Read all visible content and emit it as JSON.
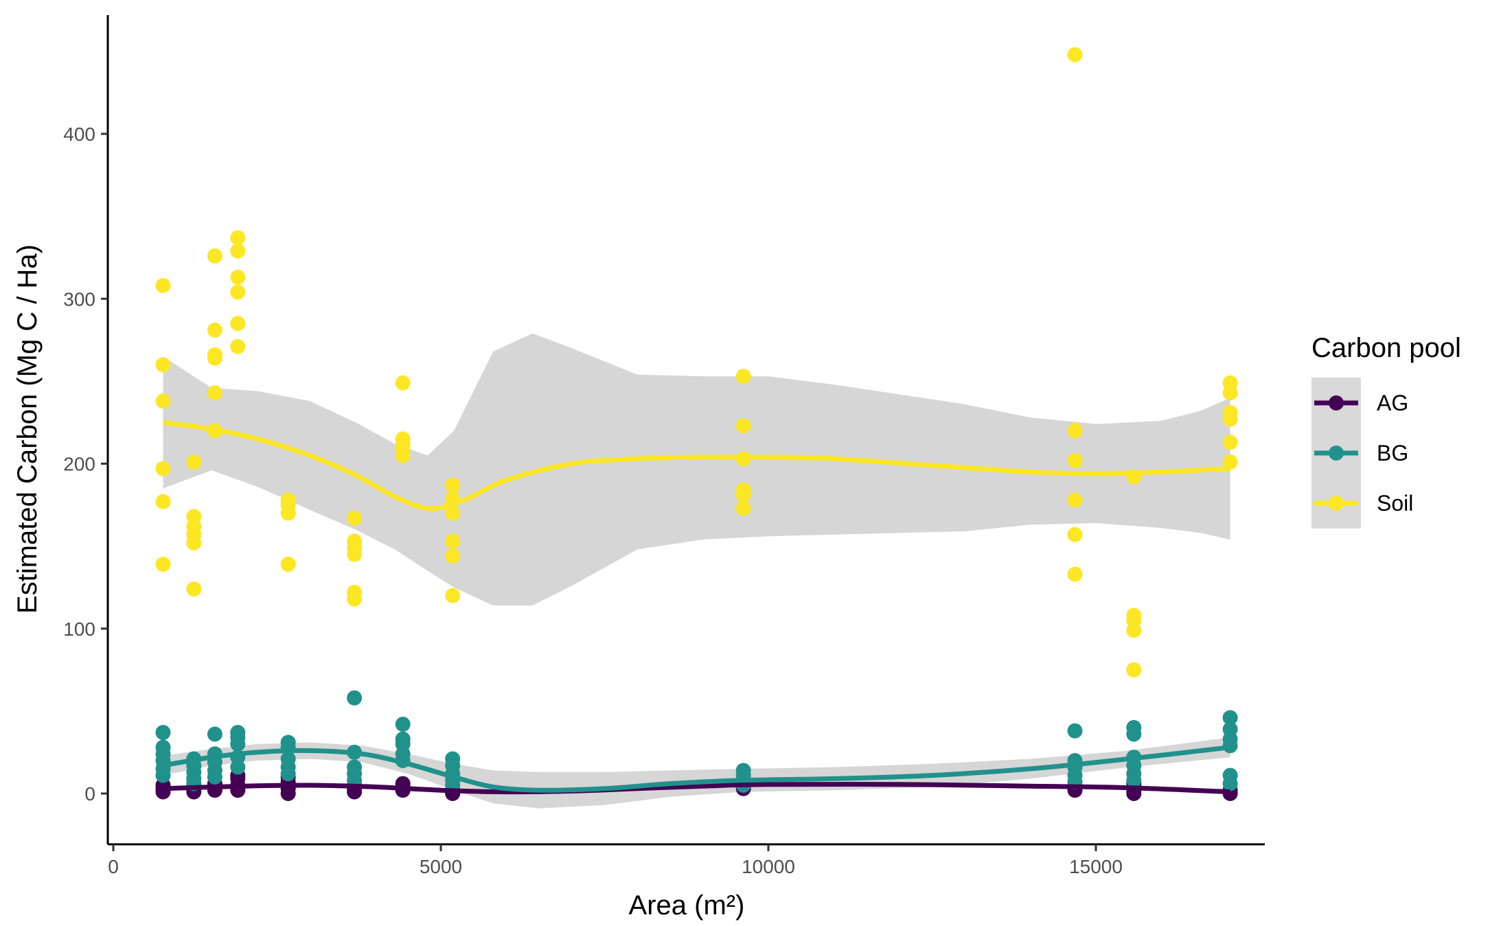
{
  "chart_data": {
    "type": "scatter",
    "xlabel": "Area (m²)",
    "ylabel": "Estimated Carbon (Mg C / Ha)",
    "xlim": [
      -200,
      17900
    ],
    "ylim": [
      -32,
      472
    ],
    "x_ticks": [
      0,
      5000,
      10000,
      15000
    ],
    "x_tick_labels": [
      "0",
      "5000",
      "10000",
      "15000"
    ],
    "y_ticks": [
      0,
      100,
      200,
      300,
      400
    ],
    "y_tick_labels": [
      "0",
      "100",
      "200",
      "300",
      "400"
    ],
    "grid": false,
    "legend": {
      "title": "Carbon pool",
      "placement": "right",
      "entries": [
        "AG",
        "BG",
        "Soil"
      ]
    },
    "series": [
      {
        "name": "AG",
        "color": "#440154",
        "points": [
          [
            760,
            1
          ],
          [
            760,
            3
          ],
          [
            760,
            5
          ],
          [
            1230,
            1
          ],
          [
            1230,
            3
          ],
          [
            1230,
            5
          ],
          [
            1550,
            2
          ],
          [
            1550,
            4
          ],
          [
            1550,
            6
          ],
          [
            1900,
            2
          ],
          [
            1900,
            5
          ],
          [
            1900,
            9
          ],
          [
            1900,
            11
          ],
          [
            2670,
            0
          ],
          [
            2670,
            3
          ],
          [
            2670,
            7
          ],
          [
            2670,
            10
          ],
          [
            3680,
            1
          ],
          [
            3680,
            3
          ],
          [
            3680,
            5
          ],
          [
            4420,
            2
          ],
          [
            4420,
            4
          ],
          [
            4420,
            6
          ],
          [
            5180,
            0
          ],
          [
            5180,
            2
          ],
          [
            9620,
            3
          ],
          [
            9620,
            5
          ],
          [
            14680,
            2
          ],
          [
            14680,
            4
          ],
          [
            15580,
            0
          ],
          [
            15580,
            2
          ],
          [
            15580,
            4
          ],
          [
            15580,
            6
          ],
          [
            17050,
            0
          ],
          [
            17050,
            2
          ]
        ],
        "smooth": [
          [
            760,
            3
          ],
          [
            2000,
            4.5
          ],
          [
            3000,
            5
          ],
          [
            4000,
            4
          ],
          [
            5000,
            2
          ],
          [
            6000,
            1
          ],
          [
            7000,
            1.5
          ],
          [
            8000,
            3
          ],
          [
            9000,
            4.5
          ],
          [
            10000,
            5.5
          ],
          [
            12000,
            5.5
          ],
          [
            14000,
            4.5
          ],
          [
            15500,
            3.5
          ],
          [
            17050,
            1
          ]
        ],
        "band": []
      },
      {
        "name": "BG",
        "color": "#21918c",
        "points": [
          [
            760,
            37
          ],
          [
            760,
            28
          ],
          [
            760,
            24
          ],
          [
            760,
            20
          ],
          [
            760,
            15
          ],
          [
            760,
            11
          ],
          [
            1230,
            21
          ],
          [
            1230,
            17
          ],
          [
            1230,
            13
          ],
          [
            1230,
            9
          ],
          [
            1230,
            6
          ],
          [
            1550,
            36
          ],
          [
            1550,
            24
          ],
          [
            1550,
            19
          ],
          [
            1550,
            14
          ],
          [
            1550,
            10
          ],
          [
            1900,
            37
          ],
          [
            1900,
            34
          ],
          [
            1900,
            30
          ],
          [
            1900,
            22
          ],
          [
            1900,
            16
          ],
          [
            2670,
            31
          ],
          [
            2670,
            28
          ],
          [
            2670,
            21
          ],
          [
            2670,
            16
          ],
          [
            2670,
            12
          ],
          [
            3680,
            58
          ],
          [
            3680,
            25
          ],
          [
            3680,
            16
          ],
          [
            3680,
            12
          ],
          [
            3680,
            8
          ],
          [
            4420,
            42
          ],
          [
            4420,
            33
          ],
          [
            4420,
            30
          ],
          [
            4420,
            24
          ],
          [
            4420,
            20
          ],
          [
            5180,
            21
          ],
          [
            5180,
            17
          ],
          [
            5180,
            12
          ],
          [
            5180,
            8
          ],
          [
            5180,
            5
          ],
          [
            9620,
            14
          ],
          [
            9620,
            11
          ],
          [
            9620,
            8
          ],
          [
            9620,
            5
          ],
          [
            14680,
            38
          ],
          [
            14680,
            20
          ],
          [
            14680,
            16
          ],
          [
            14680,
            11
          ],
          [
            14680,
            7
          ],
          [
            15580,
            40
          ],
          [
            15580,
            36
          ],
          [
            15580,
            22
          ],
          [
            15580,
            17
          ],
          [
            15580,
            12
          ],
          [
            15580,
            8
          ],
          [
            17050,
            46
          ],
          [
            17050,
            39
          ],
          [
            17050,
            33
          ],
          [
            17050,
            29
          ],
          [
            17050,
            11
          ],
          [
            17050,
            6
          ]
        ],
        "smooth": [
          [
            760,
            17
          ],
          [
            1500,
            22
          ],
          [
            2200,
            25
          ],
          [
            3000,
            26
          ],
          [
            3800,
            24
          ],
          [
            4500,
            18
          ],
          [
            5200,
            10
          ],
          [
            5800,
            4
          ],
          [
            6500,
            2
          ],
          [
            7500,
            3
          ],
          [
            8500,
            6
          ],
          [
            9600,
            8
          ],
          [
            11000,
            9
          ],
          [
            12500,
            11
          ],
          [
            14000,
            15
          ],
          [
            15500,
            21
          ],
          [
            17050,
            28
          ]
        ],
        "band": [
          [
            760,
            23,
            11
          ],
          [
            1500,
            27,
            17
          ],
          [
            2200,
            30,
            20
          ],
          [
            3000,
            31,
            21
          ],
          [
            3800,
            29,
            19
          ],
          [
            4500,
            24,
            12
          ],
          [
            5200,
            18,
            2
          ],
          [
            5800,
            14,
            -6
          ],
          [
            6500,
            13,
            -9
          ],
          [
            7500,
            13,
            -7
          ],
          [
            8500,
            14,
            -2
          ],
          [
            9600,
            15,
            1
          ],
          [
            11000,
            16,
            2
          ],
          [
            12500,
            18,
            4
          ],
          [
            14000,
            21,
            9
          ],
          [
            15500,
            26,
            16
          ],
          [
            17050,
            34,
            22
          ]
        ]
      },
      {
        "name": "Soil",
        "color": "#fde725",
        "points": [
          [
            760,
            308
          ],
          [
            760,
            260
          ],
          [
            760,
            238
          ],
          [
            760,
            197
          ],
          [
            760,
            177
          ],
          [
            760,
            139
          ],
          [
            1230,
            201
          ],
          [
            1230,
            168
          ],
          [
            1230,
            162
          ],
          [
            1230,
            157
          ],
          [
            1230,
            152
          ],
          [
            1230,
            124
          ],
          [
            1550,
            326
          ],
          [
            1550,
            281
          ],
          [
            1550,
            266
          ],
          [
            1550,
            264
          ],
          [
            1550,
            243
          ],
          [
            1550,
            220
          ],
          [
            1900,
            337
          ],
          [
            1900,
            329
          ],
          [
            1900,
            313
          ],
          [
            1900,
            304
          ],
          [
            1900,
            285
          ],
          [
            1900,
            271
          ],
          [
            2670,
            178
          ],
          [
            2670,
            175
          ],
          [
            2670,
            170
          ],
          [
            2670,
            139
          ],
          [
            3680,
            167
          ],
          [
            3680,
            153
          ],
          [
            3680,
            149
          ],
          [
            3680,
            145
          ],
          [
            3680,
            122
          ],
          [
            3680,
            118
          ],
          [
            4420,
            249
          ],
          [
            4420,
            215
          ],
          [
            4420,
            212
          ],
          [
            4420,
            208
          ],
          [
            4420,
            205
          ],
          [
            5180,
            187
          ],
          [
            5180,
            179
          ],
          [
            5180,
            170
          ],
          [
            5180,
            153
          ],
          [
            5180,
            144
          ],
          [
            5180,
            120
          ],
          [
            9620,
            253
          ],
          [
            9620,
            223
          ],
          [
            9620,
            203
          ],
          [
            9620,
            184
          ],
          [
            9620,
            181
          ],
          [
            9620,
            173
          ],
          [
            14680,
            448
          ],
          [
            14680,
            220
          ],
          [
            14680,
            202
          ],
          [
            14680,
            178
          ],
          [
            14680,
            157
          ],
          [
            14680,
            133
          ],
          [
            15580,
            192
          ],
          [
            15580,
            108
          ],
          [
            15580,
            105
          ],
          [
            15580,
            99
          ],
          [
            15580,
            75
          ],
          [
            17050,
            249
          ],
          [
            17050,
            243
          ],
          [
            17050,
            231
          ],
          [
            17050,
            227
          ],
          [
            17050,
            213
          ],
          [
            17050,
            201
          ]
        ],
        "smooth": [
          [
            760,
            225
          ],
          [
            1500,
            221
          ],
          [
            2200,
            215
          ],
          [
            3000,
            205
          ],
          [
            3700,
            193
          ],
          [
            4300,
            180
          ],
          [
            4800,
            173
          ],
          [
            5300,
            177
          ],
          [
            6000,
            190
          ],
          [
            7000,
            200
          ],
          [
            8000,
            203
          ],
          [
            9000,
            204
          ],
          [
            10000,
            204
          ],
          [
            11000,
            203
          ],
          [
            12500,
            199
          ],
          [
            14000,
            195
          ],
          [
            15000,
            194
          ],
          [
            16000,
            195
          ],
          [
            17050,
            197
          ]
        ],
        "band": [
          [
            760,
            265,
            185
          ],
          [
            1500,
            246,
            196
          ],
          [
            2200,
            244,
            186
          ],
          [
            3000,
            238,
            172
          ],
          [
            3700,
            225,
            160
          ],
          [
            4300,
            212,
            148
          ],
          [
            4800,
            205,
            135
          ],
          [
            5200,
            220,
            125
          ],
          [
            5800,
            268,
            114
          ],
          [
            6400,
            279,
            114
          ],
          [
            7000,
            270,
            126
          ],
          [
            8000,
            254,
            148
          ],
          [
            9000,
            253,
            154
          ],
          [
            10000,
            253,
            156
          ],
          [
            11000,
            248,
            157
          ],
          [
            12000,
            242,
            158
          ],
          [
            13000,
            236,
            159
          ],
          [
            14000,
            228,
            163
          ],
          [
            15000,
            224,
            164
          ],
          [
            16000,
            226,
            161
          ],
          [
            16600,
            232,
            158
          ],
          [
            17050,
            240,
            154
          ]
        ]
      }
    ]
  }
}
